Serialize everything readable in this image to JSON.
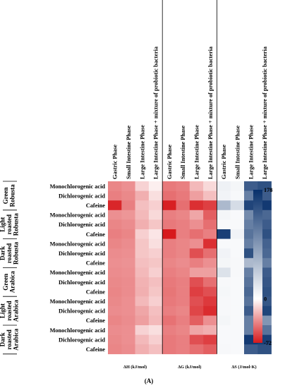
{
  "chart_data": {
    "type": "heatmap",
    "figure_label": "(A)",
    "columns": [
      "Gastric Phase",
      "Small Intestine Phase",
      "Large Intestine Phase",
      "Large Intestine Phase + mixture of probiotic bacteria",
      "Gastric Phase",
      "Small Intestine Phase",
      "Large Intestine Phase",
      "Large Intestine Phase + mixture of probiotic bacteria",
      "Gastric Phase",
      "Small Intestine Phase",
      "Large Intestine Phase",
      "Large Intestine Phase + mixture of probiotic bacteria"
    ],
    "column_groups": [
      {
        "label": "ΔH (kJ/mol)"
      },
      {
        "label": "ΔG (kJ/mol)"
      },
      {
        "label": "ΔS (J/mol·K)"
      }
    ],
    "row_groups": [
      {
        "lines": [
          "Green",
          "Robusta"
        ]
      },
      {
        "lines": [
          "Light",
          "roasted",
          "Robusta"
        ]
      },
      {
        "lines": [
          "Dark",
          "roasted",
          "Robusta"
        ]
      },
      {
        "lines": [
          "Green",
          "Arabica"
        ]
      },
      {
        "lines": [
          "Light",
          "roasted",
          "Arabica"
        ]
      },
      {
        "lines": [
          "Dark",
          "roasted",
          "Arabica"
        ]
      }
    ],
    "compounds": [
      "Monochlorogenic acid",
      "Dichlorogenic acid",
      "Cafeine"
    ],
    "values": [
      [
        -38,
        -35,
        -14,
        -5,
        -42,
        -40,
        -22,
        -12,
        12,
        8,
        140,
        150
      ],
      [
        -40,
        -37,
        -25,
        -10,
        -45,
        -42,
        -30,
        -20,
        10,
        6,
        110,
        140
      ],
      [
        -68,
        -40,
        -20,
        -15,
        -70,
        -45,
        -65,
        -60,
        60,
        30,
        160,
        170
      ],
      [
        -35,
        -33,
        -22,
        -12,
        -40,
        -38,
        -28,
        -50,
        8,
        5,
        100,
        130
      ],
      [
        -38,
        -36,
        -25,
        -18,
        -42,
        -40,
        -35,
        -45,
        5,
        5,
        110,
        140
      ],
      [
        -40,
        -38,
        -15,
        -8,
        -72,
        -40,
        -45,
        -40,
        165,
        10,
        120,
        150
      ],
      [
        -38,
        -36,
        -18,
        -10,
        -40,
        -38,
        -35,
        -65,
        5,
        5,
        110,
        135
      ],
      [
        -36,
        -35,
        -18,
        -15,
        -40,
        -38,
        -55,
        -45,
        10,
        5,
        150,
        130
      ],
      [
        -35,
        -34,
        -20,
        -18,
        -38,
        -36,
        -40,
        -35,
        8,
        6,
        60,
        110
      ],
      [
        -36,
        -35,
        -22,
        -15,
        -40,
        -38,
        -30,
        -30,
        25,
        6,
        110,
        140
      ],
      [
        -37,
        -36,
        -24,
        -20,
        -42,
        -40,
        -55,
        -45,
        6,
        5,
        120,
        145
      ],
      [
        -38,
        -36,
        -25,
        -18,
        -43,
        -40,
        -60,
        -55,
        7,
        5,
        130,
        150
      ],
      [
        -37,
        -35,
        -22,
        -15,
        -42,
        -40,
        -55,
        -62,
        6,
        5,
        120,
        145
      ],
      [
        -36,
        -35,
        -28,
        -20,
        -40,
        -38,
        -58,
        -66,
        6,
        5,
        140,
        160
      ],
      [
        -38,
        -36,
        -30,
        -22,
        -44,
        -40,
        -50,
        -35,
        8,
        5,
        110,
        90
      ],
      [
        -36,
        -35,
        -14,
        -10,
        -40,
        -38,
        -28,
        -25,
        5,
        5,
        110,
        120
      ],
      [
        -37,
        -35,
        -22,
        -15,
        -42,
        -40,
        -55,
        -60,
        5,
        5,
        170,
        165
      ],
      [
        -38,
        -36,
        -25,
        -20,
        -42,
        -40,
        -45,
        -50,
        6,
        5,
        140,
        150
      ]
    ],
    "colorbar": {
      "ticks": [
        178,
        0,
        -72
      ],
      "min": -72,
      "max": 178,
      "color_negative": "#d7191c",
      "color_zero": "#ffffff",
      "color_positive": "#08306b"
    },
    "legend_placement": "right"
  }
}
